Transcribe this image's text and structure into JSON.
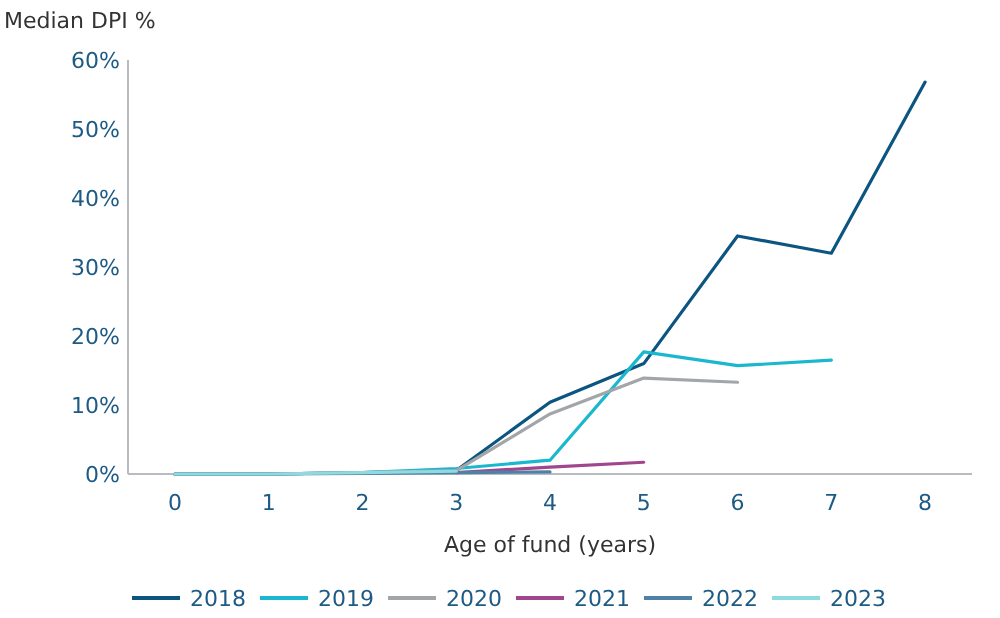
{
  "chart_data": {
    "type": "line",
    "ylabel": "Median DPI %",
    "xlabel": "Age of fund (years)",
    "x": [
      0,
      1,
      2,
      3,
      4,
      5,
      6,
      7,
      8
    ],
    "xlim": [
      -0.5,
      8.5
    ],
    "xticks": [
      0,
      1,
      2,
      3,
      4,
      5,
      6,
      7,
      8
    ],
    "ylim": [
      0,
      60
    ],
    "yticks": [
      {
        "value": 0,
        "label": "0%"
      },
      {
        "value": 10,
        "label": "10%"
      },
      {
        "value": 20,
        "label": "20%"
      },
      {
        "value": 30,
        "label": "30%"
      },
      {
        "value": 40,
        "label": "40%"
      },
      {
        "value": 50,
        "label": "50%"
      },
      {
        "value": 60,
        "label": "60%"
      }
    ],
    "grid": false,
    "legend": "bottom",
    "marker": "none",
    "line_style": "solid",
    "series": [
      {
        "name": "2018",
        "color": "#0b5580",
        "values": [
          0,
          0,
          0.2,
          0.5,
          10.4,
          16,
          34.5,
          32,
          56.8
        ]
      },
      {
        "name": "2019",
        "color": "#1ab8cf",
        "values": [
          0,
          0,
          0.2,
          0.8,
          2,
          17.7,
          15.7,
          16.5,
          null
        ]
      },
      {
        "name": "2020",
        "color": "#a3a6a9",
        "values": [
          0,
          0,
          0.2,
          0.5,
          8.7,
          13.9,
          13.3,
          null,
          null
        ]
      },
      {
        "name": "2021",
        "color": "#a0468f",
        "values": [
          null,
          null,
          null,
          0.2,
          1,
          1.7,
          null,
          null,
          null
        ]
      },
      {
        "name": "2022",
        "color": "#4f81a6",
        "values": [
          0,
          0,
          0.1,
          0.2,
          0.3,
          null,
          null,
          null,
          null
        ]
      },
      {
        "name": "2023",
        "color": "#8fd9e0",
        "values": [
          0,
          0,
          0.2,
          0.4,
          null,
          null,
          null,
          null,
          null
        ]
      }
    ]
  }
}
